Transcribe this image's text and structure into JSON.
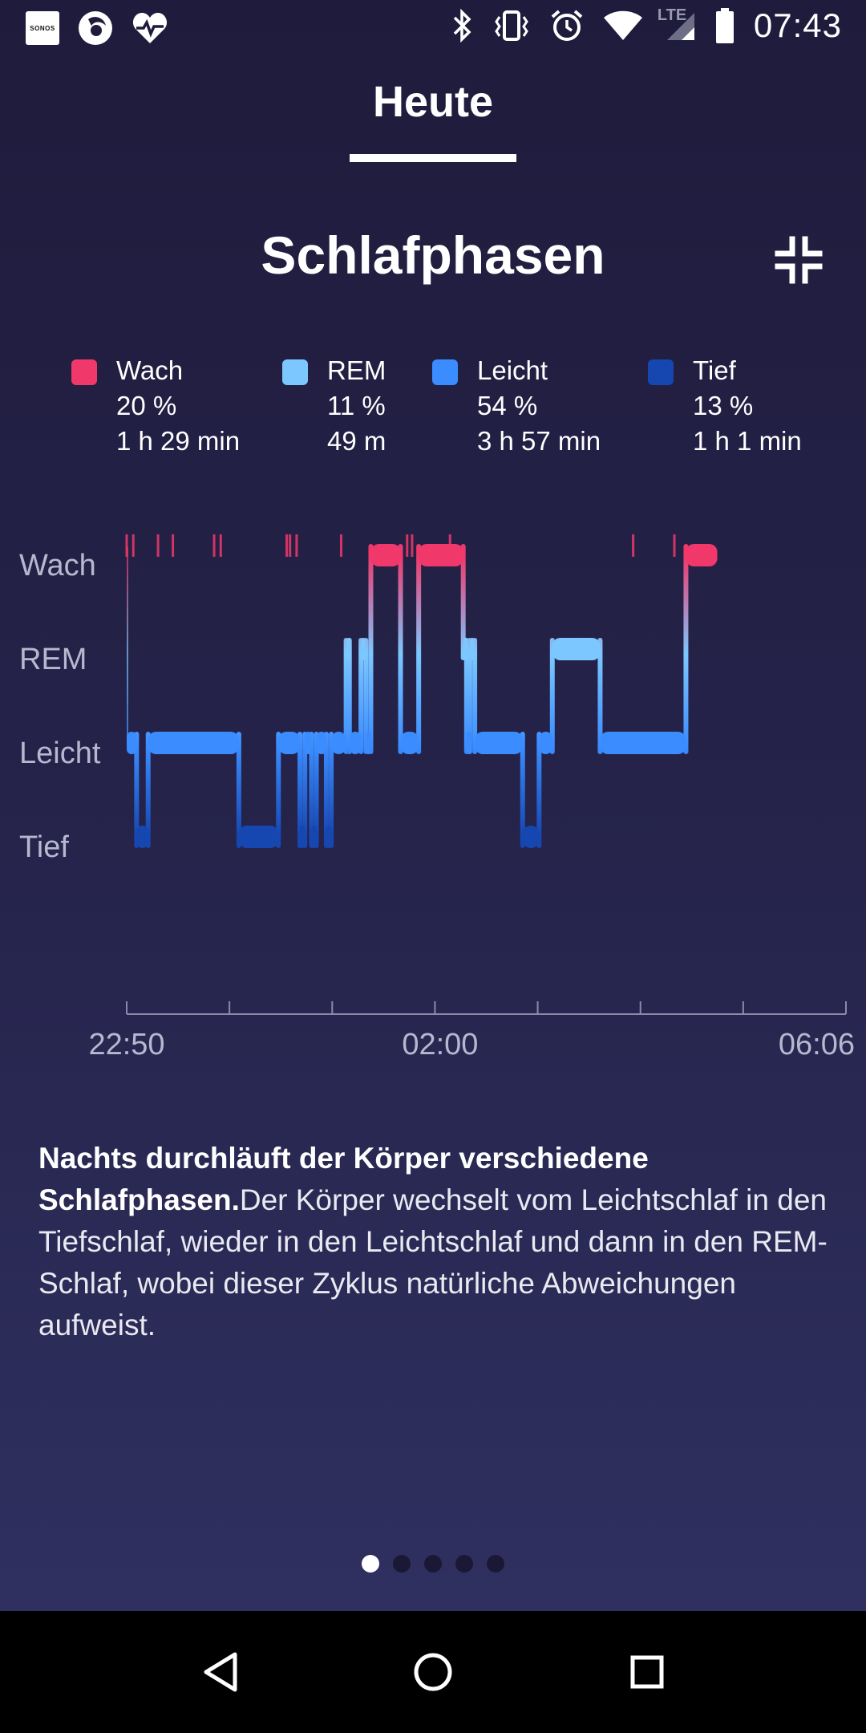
{
  "status_bar": {
    "time": "07:43",
    "network": "LTE",
    "sonos_label": "SONOS",
    "icons": [
      "sonos-icon",
      "firefox-icon",
      "heart-rate-icon",
      "bluetooth-icon",
      "vibrate-icon",
      "alarm-icon",
      "wifi-icon",
      "signal-icon",
      "battery-icon"
    ]
  },
  "tabs": {
    "active_label": "Heute"
  },
  "card": {
    "title": "Schlafphasen",
    "collapse_icon": "collapse-icon"
  },
  "legend": [
    {
      "name": "Wach",
      "percent": "20 %",
      "duration": "1 h 29 min",
      "color": "#f0386b"
    },
    {
      "name": "REM",
      "percent": "11 %",
      "duration": "49 m",
      "color": "#7cc7ff"
    },
    {
      "name": "Leicht",
      "percent": "54 %",
      "duration": "3 h 57 min",
      "color": "#3b8cff"
    },
    {
      "name": "Tief",
      "percent": "13 %",
      "duration": "1 h 1 min",
      "color": "#1646b0"
    }
  ],
  "chart_data": {
    "type": "line",
    "y_categories": [
      "Wach",
      "REM",
      "Leicht",
      "Tief"
    ],
    "x_tick_labels": [
      "22:50",
      "02:00",
      "06:06"
    ],
    "x_range": [
      "22:50",
      "06:06"
    ],
    "stage_colors": {
      "Wach": "#f0386b",
      "REM": "#7cc7ff",
      "Leicht": "#3b8cff",
      "Tief": "#1646b0"
    },
    "segments": [
      {
        "start": "22:50",
        "end": "22:56",
        "stage": "Leicht"
      },
      {
        "start": "22:56",
        "end": "23:03",
        "stage": "Tief"
      },
      {
        "start": "23:03",
        "end": "23:58",
        "stage": "Leicht"
      },
      {
        "start": "23:58",
        "end": "00:22",
        "stage": "Tief"
      },
      {
        "start": "00:22",
        "end": "00:35",
        "stage": "Leicht"
      },
      {
        "start": "00:35",
        "end": "00:38",
        "stage": "Tief"
      },
      {
        "start": "00:38",
        "end": "00:42",
        "stage": "Leicht"
      },
      {
        "start": "00:42",
        "end": "00:45",
        "stage": "Tief"
      },
      {
        "start": "00:45",
        "end": "00:51",
        "stage": "Leicht"
      },
      {
        "start": "00:51",
        "end": "00:54",
        "stage": "Tief"
      },
      {
        "start": "00:54",
        "end": "01:03",
        "stage": "Leicht"
      },
      {
        "start": "01:03",
        "end": "01:05",
        "stage": "REM"
      },
      {
        "start": "01:05",
        "end": "01:12",
        "stage": "Leicht"
      },
      {
        "start": "01:12",
        "end": "01:15",
        "stage": "REM"
      },
      {
        "start": "01:15",
        "end": "01:18",
        "stage": "Leicht"
      },
      {
        "start": "01:18",
        "end": "01:36",
        "stage": "Wach"
      },
      {
        "start": "01:36",
        "end": "01:47",
        "stage": "Leicht"
      },
      {
        "start": "01:47",
        "end": "02:14",
        "stage": "Wach"
      },
      {
        "start": "02:14",
        "end": "02:16",
        "stage": "REM"
      },
      {
        "start": "02:16",
        "end": "02:18",
        "stage": "Leicht"
      },
      {
        "start": "02:18",
        "end": "02:21",
        "stage": "REM"
      },
      {
        "start": "02:21",
        "end": "02:50",
        "stage": "Leicht"
      },
      {
        "start": "02:50",
        "end": "03:00",
        "stage": "Tief"
      },
      {
        "start": "03:00",
        "end": "03:08",
        "stage": "Leicht"
      },
      {
        "start": "03:08",
        "end": "03:37",
        "stage": "REM"
      },
      {
        "start": "03:37",
        "end": "04:29",
        "stage": "Leicht"
      },
      {
        "start": "04:29",
        "end": "04:48",
        "stage": "Wach"
      }
    ],
    "brief_wake_marks": [
      "22:50",
      "22:54",
      "23:09",
      "23:18",
      "23:43",
      "23:47",
      "00:27",
      "00:29",
      "00:33",
      "01:00",
      "01:40",
      "01:43",
      "02:06",
      "03:57",
      "04:22"
    ]
  },
  "description": {
    "bold": "Nachts durchläuft der Körper verschiedene Schlafphasen.",
    "text": "Der Körper wechselt vom Leichtschlaf in den Tiefschlaf, wieder in den Leichtschlaf und dann in den REM-Schlaf, wobei dieser Zyklus natürliche Abweichungen aufweist."
  },
  "pager": {
    "count": 5,
    "active_index": 0
  },
  "nav_bar": {
    "icons": [
      "back-icon",
      "home-icon",
      "recents-icon"
    ]
  }
}
